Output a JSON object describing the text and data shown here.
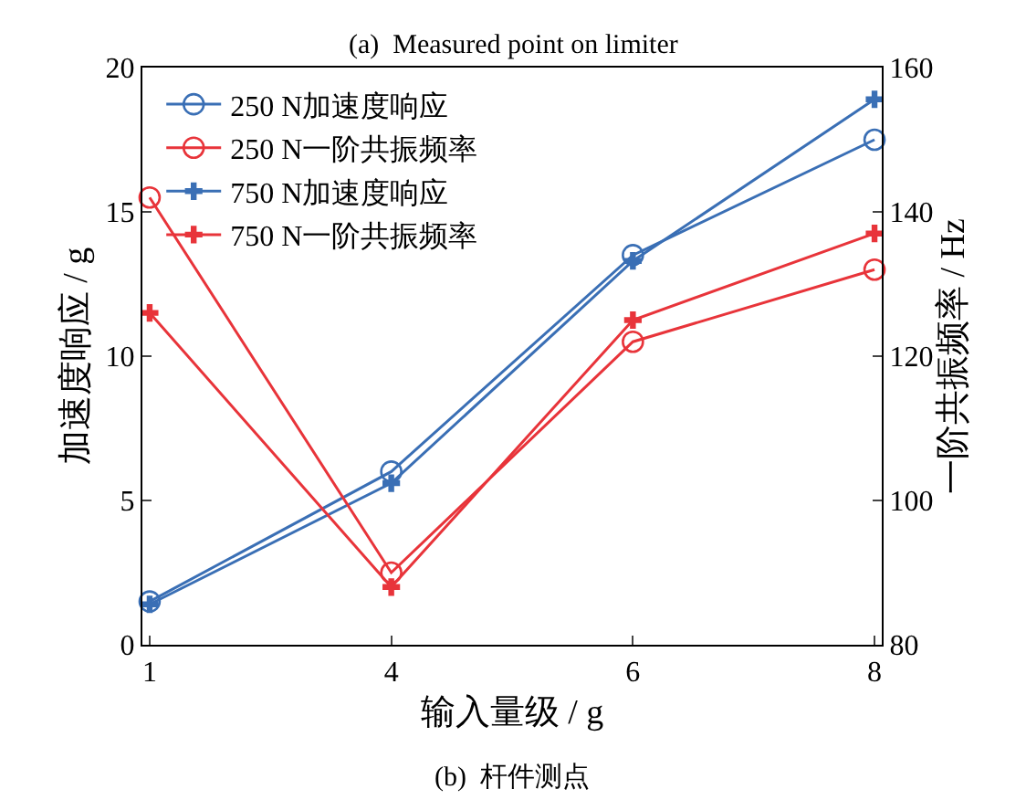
{
  "chart_data": {
    "type": "line",
    "categories": [
      "1",
      "4",
      "6",
      "8"
    ],
    "xlabel": "输入量级 / g",
    "ylabel": "加速度响应 / g",
    "y2label": "一阶共振频率 / Hz",
    "ylim": [
      0,
      20
    ],
    "yticks": [
      0,
      5,
      10,
      15,
      20
    ],
    "y2lim": [
      80,
      160
    ],
    "y2ticks": [
      80,
      100,
      120,
      140,
      160
    ],
    "series": [
      {
        "name": "250 N加速度响应",
        "color": "#3a6fb5",
        "marker": "circle",
        "values": [
          1.5,
          6.0,
          13.5,
          17.5
        ]
      },
      {
        "name": "250 N一阶共振频率",
        "color": "#e8343a",
        "marker": "circle",
        "axis": "y2",
        "values": [
          142,
          90,
          122,
          132
        ]
      },
      {
        "name": "750 N加速度响应",
        "color": "#3a6fb5",
        "marker": "cross",
        "values": [
          1.4,
          5.6,
          13.3,
          18.9
        ]
      },
      {
        "name": "750 N一阶共振频率",
        "color": "#e8343a",
        "marker": "cross",
        "axis": "y2",
        "values": [
          126,
          88,
          125,
          137
        ]
      }
    ],
    "legend": "top left",
    "annotations": [
      "(a)  Measured point on limiter",
      "(b)  杆件测点"
    ]
  }
}
